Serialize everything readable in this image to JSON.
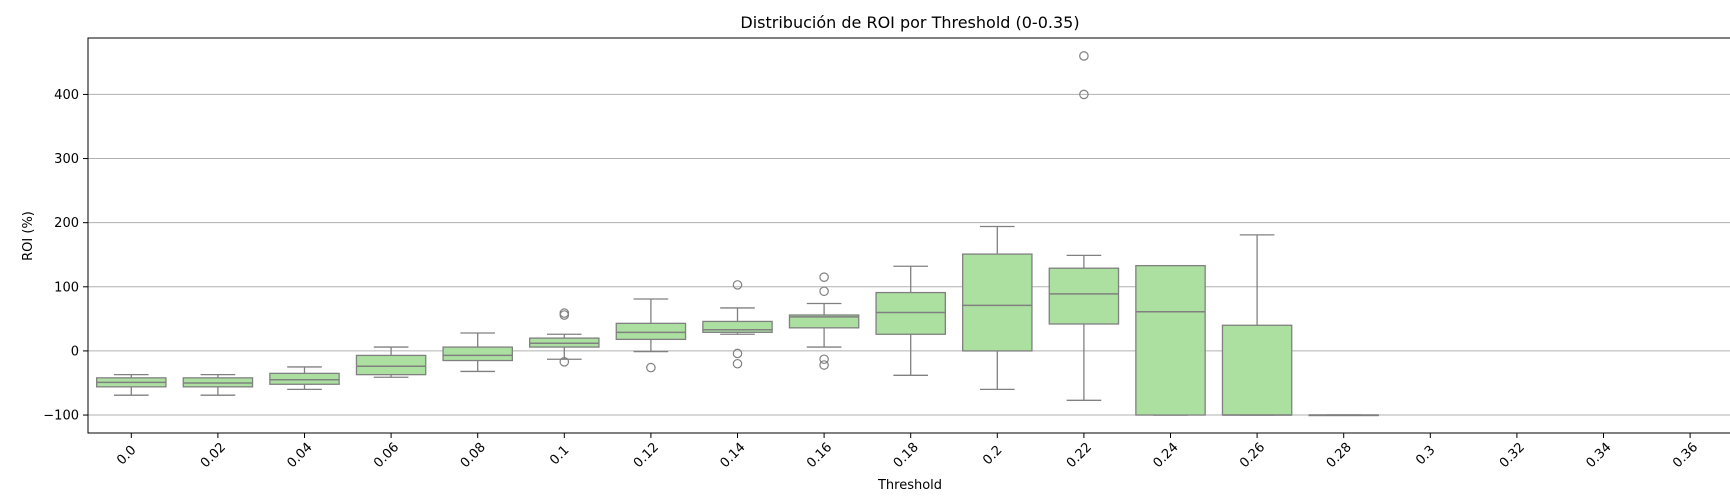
{
  "chart_data": {
    "type": "box",
    "title": "Distribución de ROI por Threshold (0-0.35)",
    "xlabel": "Threshold",
    "ylabel": "ROI (%)",
    "ylim": [
      -128,
      488
    ],
    "yticks": [
      -100,
      0,
      100,
      200,
      300,
      400
    ],
    "ytick_labels": [
      "−100",
      "0",
      "100",
      "200",
      "300",
      "400"
    ],
    "grid": "horizontal",
    "colors": {
      "box_fill": "#abe0a0",
      "box_stroke": "#808080",
      "grid": "#b0b0b0",
      "axis": "#000000"
    },
    "categories": [
      "0.0",
      "0.02",
      "0.04",
      "0.06",
      "0.08",
      "0.1",
      "0.12",
      "0.14",
      "0.16",
      "0.18",
      "0.2",
      "0.22",
      "0.24",
      "0.26",
      "0.28",
      "0.3",
      "0.32",
      "0.34",
      "0.36"
    ],
    "boxes": [
      {
        "category": "0.0",
        "whislo": -69,
        "q1": -56,
        "med": -49,
        "q3": -42,
        "whishi": -37,
        "fliers": []
      },
      {
        "category": "0.02",
        "whislo": -69,
        "q1": -56,
        "med": -50,
        "q3": -42,
        "whishi": -37,
        "fliers": []
      },
      {
        "category": "0.04",
        "whislo": -60,
        "q1": -52,
        "med": -45,
        "q3": -35,
        "whishi": -25,
        "fliers": []
      },
      {
        "category": "0.06",
        "whislo": -41,
        "q1": -37,
        "med": -24,
        "q3": -7,
        "whishi": 6,
        "fliers": []
      },
      {
        "category": "0.08",
        "whislo": -32,
        "q1": -15,
        "med": -7,
        "q3": 6,
        "whishi": 28,
        "fliers": []
      },
      {
        "category": "0.1",
        "whislo": -13,
        "q1": 6,
        "med": 12,
        "q3": 20,
        "whishi": 26,
        "fliers": [
          56,
          59,
          -17
        ]
      },
      {
        "category": "0.12",
        "whislo": -1,
        "q1": 18,
        "med": 29,
        "q3": 43,
        "whishi": 81,
        "fliers": [
          -26
        ]
      },
      {
        "category": "0.14",
        "whislo": 26,
        "q1": 29,
        "med": 33,
        "q3": 46,
        "whishi": 67,
        "fliers": [
          103,
          -4,
          -20
        ]
      },
      {
        "category": "0.16",
        "whislo": 6,
        "q1": 36,
        "med": 53,
        "q3": 56,
        "whishi": 74,
        "fliers": [
          115,
          93,
          -13,
          -22
        ]
      },
      {
        "category": "0.18",
        "whislo": -38,
        "q1": 26,
        "med": 60,
        "q3": 91,
        "whishi": 132,
        "fliers": []
      },
      {
        "category": "0.2",
        "whislo": -60,
        "q1": 0,
        "med": 71,
        "q3": 151,
        "whishi": 194,
        "fliers": []
      },
      {
        "category": "0.22",
        "whislo": -77,
        "q1": 42,
        "med": 89,
        "q3": 129,
        "whishi": 149,
        "fliers": [
          460,
          400
        ]
      },
      {
        "category": "0.24",
        "whislo": -100,
        "q1": -100,
        "med": 61,
        "q3": 133,
        "whishi": 133,
        "fliers": []
      },
      {
        "category": "0.26",
        "whislo": -100,
        "q1": -100,
        "med": -100,
        "q3": 40,
        "whishi": 181,
        "fliers": []
      },
      {
        "category": "0.28",
        "whislo": -100,
        "q1": -100,
        "med": -100,
        "q3": -100,
        "whishi": -100,
        "fliers": []
      }
    ]
  }
}
